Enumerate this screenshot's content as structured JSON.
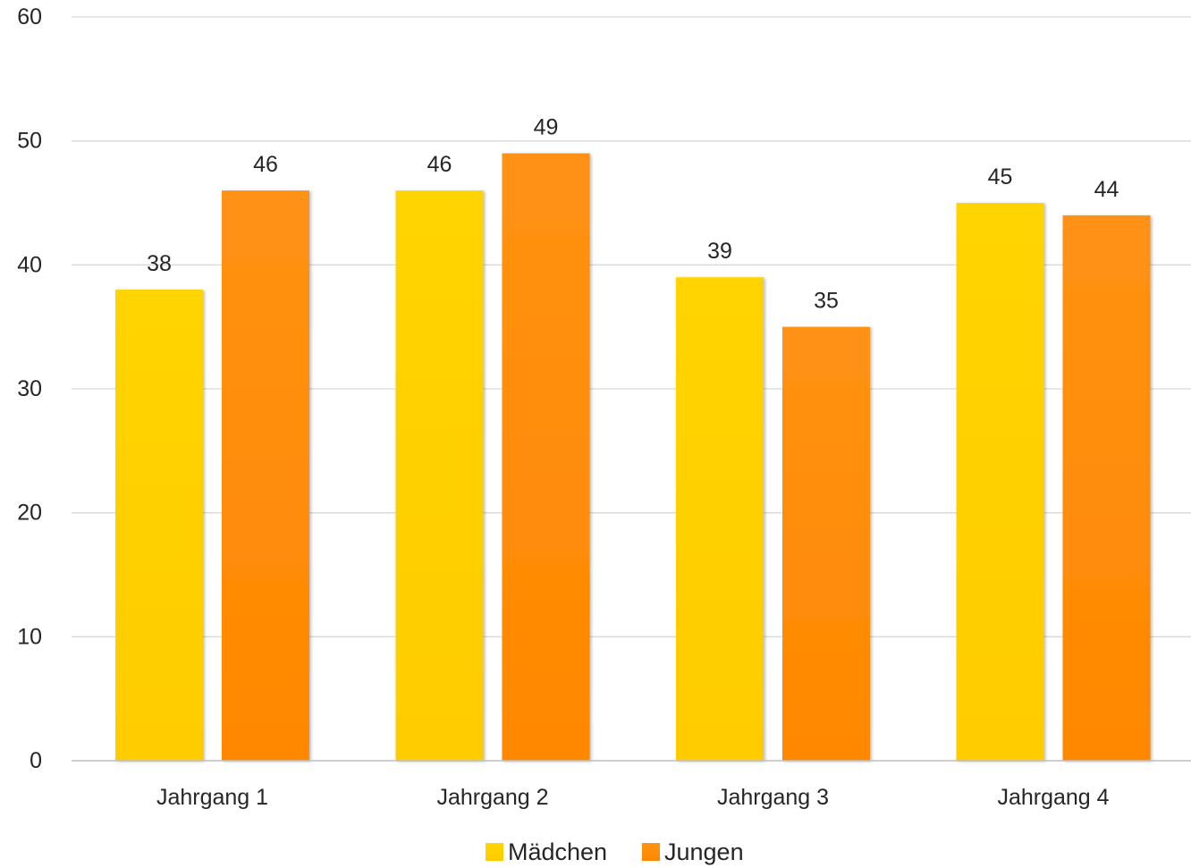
{
  "chart_data": {
    "type": "bar",
    "categories": [
      "Jahrgang 1",
      "Jahrgang 2",
      "Jahrgang 3",
      "Jahrgang 4"
    ],
    "series": [
      {
        "name": "Mädchen",
        "values": [
          38,
          46,
          39,
          45
        ],
        "color": "#FFD000"
      },
      {
        "name": "Jungen",
        "values": [
          46,
          49,
          35,
          44
        ],
        "color": "#FF8C00"
      }
    ],
    "ylim": [
      0,
      60
    ],
    "yticks": [
      0,
      10,
      20,
      30,
      40,
      50,
      60
    ],
    "title": "",
    "xlabel": "",
    "ylabel": "",
    "grid": true,
    "data_labels": true,
    "legend_position": "bottom"
  }
}
